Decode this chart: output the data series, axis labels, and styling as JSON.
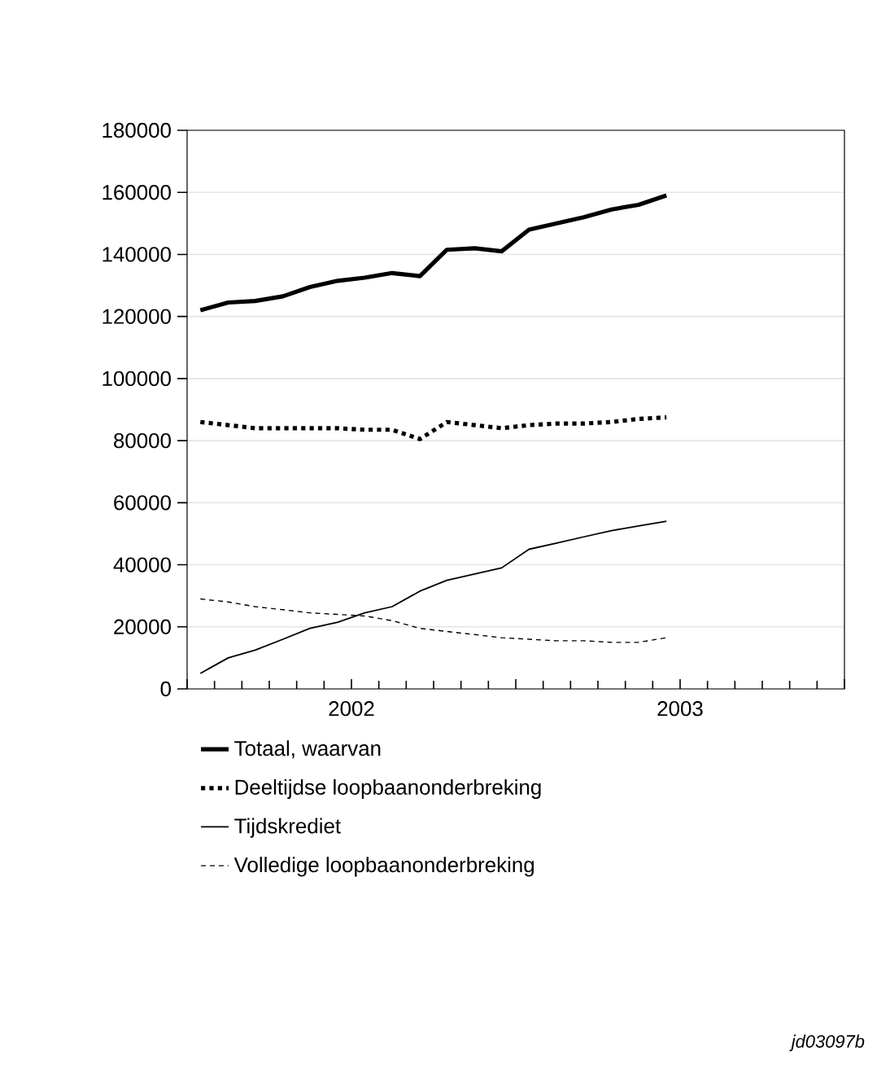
{
  "chart_data": {
    "type": "line",
    "x": [
      "2002-01-16",
      "2002-02-15",
      "2002-03-16",
      "2002-04-16",
      "2002-05-16",
      "2002-06-16",
      "2002-07-16",
      "2002-08-16",
      "2002-09-16",
      "2002-10-16",
      "2002-11-16",
      "2002-12-16",
      "2003-01-16",
      "2003-02-15",
      "2003-03-16",
      "2003-04-16",
      "2003-05-16",
      "2003-06-16"
    ],
    "series": [
      {
        "name": "Totaal, waarvan",
        "color": "#000000",
        "line_style": "solid",
        "values": [
          122000,
          124500,
          125000,
          126500,
          129500,
          131500,
          132500,
          134000,
          133000,
          141500,
          142000,
          141000,
          148000,
          150000,
          152000,
          154500,
          156000,
          159000
        ]
      },
      {
        "name": "Deeltijdse loopbaanonderbreking",
        "color": "#000000",
        "line_style": "dotted",
        "values": [
          86000,
          85000,
          84000,
          84000,
          84000,
          84000,
          83500,
          83500,
          80500,
          86000,
          85000,
          84000,
          85000,
          85500,
          85500,
          86000,
          87000,
          87500
        ]
      },
      {
        "name": "Tijdskrediet",
        "color": "#000000",
        "line_style": "solid",
        "values": [
          5000,
          10000,
          12500,
          16000,
          19500,
          21500,
          24500,
          26500,
          31500,
          35000,
          37000,
          39000,
          45000,
          47000,
          49000,
          51000,
          52500,
          54000
        ]
      },
      {
        "name": "Volledige loopbaanonderbreking",
        "color": "#000000",
        "line_style": "dashed",
        "values": [
          29000,
          28000,
          26500,
          25500,
          24500,
          24000,
          23500,
          22000,
          19500,
          18500,
          17500,
          16500,
          16000,
          15500,
          15500,
          15000,
          15000,
          16500
        ]
      }
    ],
    "xlim": [
      "2002-01",
      "2004-01"
    ],
    "xticks": [
      {
        "value": "2002-01",
        "label": null
      },
      {
        "value": "2002-07",
        "label": "2002"
      },
      {
        "value": "2003-01",
        "label": null
      },
      {
        "value": "2003-07",
        "label": "2003"
      },
      {
        "value": "2004-01",
        "label": null
      }
    ],
    "ylim": [
      0,
      180000
    ],
    "yticks": [
      0,
      20000,
      40000,
      60000,
      80000,
      100000,
      120000,
      140000,
      160000,
      180000
    ],
    "grid": "y",
    "legend": "bottom",
    "marker": "none",
    "annotations": [
      "jd03097b"
    ]
  }
}
